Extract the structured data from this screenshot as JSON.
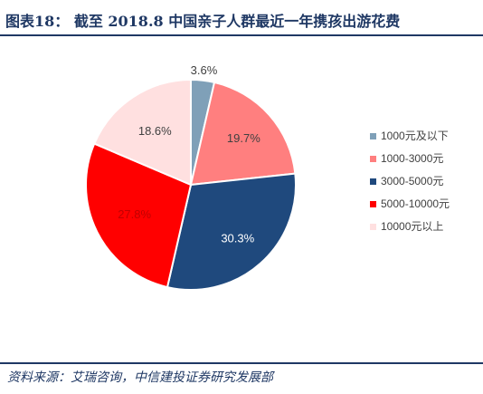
{
  "header": {
    "title": "图表18：  截至 2018.8 中国亲子人群最近一年携孩出游花费"
  },
  "footer": {
    "source": "资料来源：艾瑞咨询，中信建投证券研究发展部"
  },
  "chart_data": {
    "type": "pie",
    "title": "",
    "legend_position": "right",
    "categories": [
      "1000元及以下",
      "1000-3000元",
      "3000-5000元",
      "5000-10000元",
      "10000元以上"
    ],
    "values": [
      3.6,
      19.7,
      30.3,
      27.8,
      18.6
    ],
    "value_labels": [
      "3.6%",
      "19.7%",
      "30.3%",
      "27.8%",
      "18.6%"
    ],
    "colors": [
      "#7fa0b8",
      "#ff7f7f",
      "#1f497d",
      "#ff0000",
      "#ffe0e0"
    ],
    "label_colors": [
      "#404040",
      "#404040",
      "#ffffff",
      "#c00000",
      "#404040"
    ]
  }
}
